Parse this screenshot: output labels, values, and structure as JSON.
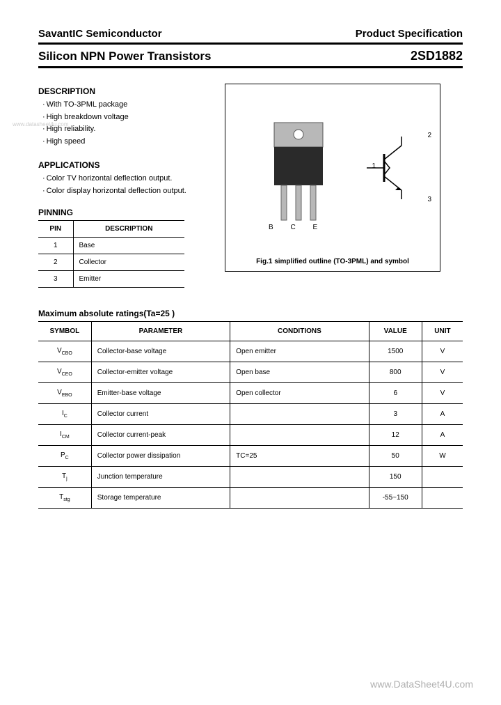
{
  "header": {
    "company": "SavantIC Semiconductor",
    "spec": "Product Specification",
    "product_type": "Silicon NPN Power Transistors",
    "part_number": "2SD1882"
  },
  "description": {
    "title": "DESCRIPTION",
    "items": [
      "With TO-3PML package",
      "High breakdown voltage",
      "High reliability.",
      "High speed"
    ]
  },
  "applications": {
    "title": "APPLICATIONS",
    "items": [
      "Color TV horizontal deflection output.",
      "Color display horizontal deflection output."
    ]
  },
  "pinning": {
    "title": "PINNING",
    "columns": [
      "PIN",
      "DESCRIPTION"
    ],
    "rows": [
      [
        "1",
        "Base"
      ],
      [
        "2",
        "Collector"
      ],
      [
        "3",
        "Emitter"
      ]
    ]
  },
  "figure": {
    "caption": "Fig.1 simplified outline (TO-3PML) and symbol",
    "pin_letters": "B C E",
    "symbol_labels": {
      "n1": "1",
      "n2": "2",
      "n3": "3"
    }
  },
  "ratings": {
    "title": "Maximum absolute ratings(Ta=25 )",
    "columns": [
      "SYMBOL",
      "PARAMETER",
      "CONDITIONS",
      "VALUE",
      "UNIT"
    ],
    "rows": [
      {
        "sym": "V",
        "sub": "CBO",
        "param": "Collector-base voltage",
        "cond": "Open emitter",
        "val": "1500",
        "unit": "V"
      },
      {
        "sym": "V",
        "sub": "CEO",
        "param": "Collector-emitter voltage",
        "cond": "Open base",
        "val": "800",
        "unit": "V"
      },
      {
        "sym": "V",
        "sub": "EBO",
        "param": "Emitter-base voltage",
        "cond": "Open collector",
        "val": "6",
        "unit": "V"
      },
      {
        "sym": "I",
        "sub": "C",
        "param": "Collector current",
        "cond": "",
        "val": "3",
        "unit": "A"
      },
      {
        "sym": "I",
        "sub": "CM",
        "param": "Collector current-peak",
        "cond": "",
        "val": "12",
        "unit": "A"
      },
      {
        "sym": "P",
        "sub": "C",
        "param": "Collector power dissipation",
        "cond": "TC=25 ",
        "val": "50",
        "unit": "W"
      },
      {
        "sym": "T",
        "sub": "j",
        "param": "Junction temperature",
        "cond": "",
        "val": "150",
        "unit": ""
      },
      {
        "sym": "T",
        "sub": "stg",
        "param": "Storage temperature",
        "cond": "",
        "val": "-55~150",
        "unit": ""
      }
    ]
  },
  "watermarks": {
    "top": "www.datasheet4u.com",
    "bottom": "www.DataSheet4U.com"
  },
  "colors": {
    "text": "#000000",
    "bg": "#ffffff",
    "border": "#000000",
    "watermark": "#cccccc",
    "component_body": "#2a2a2a",
    "component_metal": "#b8b8b8"
  }
}
